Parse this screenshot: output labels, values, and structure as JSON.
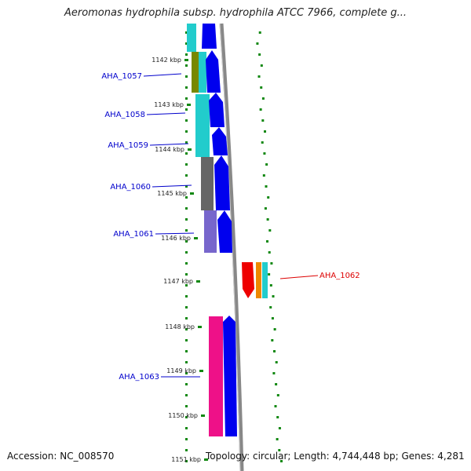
{
  "header": {
    "title": "Aeromonas hydrophila subsp. hydrophila ATCC 7966, complete g..."
  },
  "footer": {
    "accession": "Accession: NC_008570",
    "summary": "Topology: circular; Length: 4,744,448 bp; Genes: 4,281"
  },
  "genome_map": {
    "ticks": [
      "1142 kbp",
      "1143 kbp",
      "1144 kbp",
      "1145 kbp",
      "1146 kbp",
      "1147 kbp",
      "1148 kbp",
      "1149 kbp",
      "1150 kbp",
      "1151 kbp"
    ],
    "gene_labels": [
      {
        "id": "AHA_1057",
        "color": "#0000cc"
      },
      {
        "id": "AHA_1058",
        "color": "#0000cc"
      },
      {
        "id": "AHA_1059",
        "color": "#0000cc"
      },
      {
        "id": "AHA_1060",
        "color": "#0000cc"
      },
      {
        "id": "AHA_1061",
        "color": "#0000cc"
      },
      {
        "id": "AHA_1062",
        "color": "#dd0000"
      },
      {
        "id": "AHA_1063",
        "color": "#0000cc"
      }
    ],
    "colors": {
      "forward_cds": "#0000ee",
      "cog_cyan": "#22cccc",
      "cog_olive": "#778800",
      "cog_gray": "#666666",
      "cog_purple": "#7766cc",
      "cog_pink": "#ee1188",
      "reverse_red": "#ee0000",
      "cog_orange": "#ee8800",
      "backbone": "#888888",
      "gc_dots": "#118811"
    }
  }
}
